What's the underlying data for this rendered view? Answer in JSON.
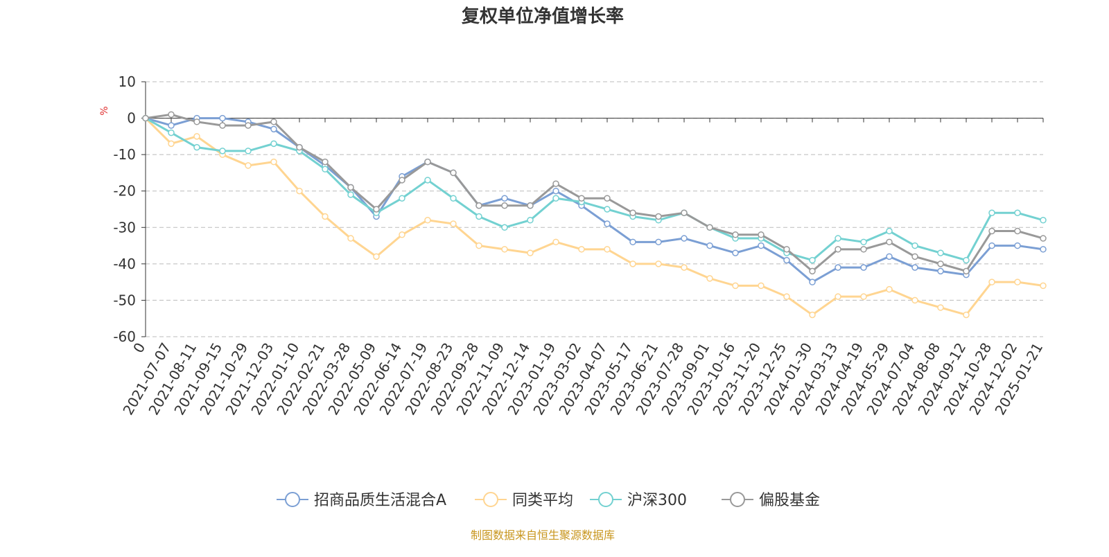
{
  "chart_data": {
    "type": "line",
    "title": "复权单位净值增长率",
    "y_label": "%",
    "categories": [
      "0",
      "2021-07-07",
      "2021-08-11",
      "2021-09-15",
      "2021-10-29",
      "2021-12-03",
      "2022-01-10",
      "2022-02-21",
      "2022-03-28",
      "2022-05-09",
      "2022-06-14",
      "2022-07-19",
      "2022-08-23",
      "2022-09-28",
      "2022-11-09",
      "2022-12-14",
      "2023-01-19",
      "2023-03-02",
      "2023-04-07",
      "2023-05-17",
      "2023-06-21",
      "2023-07-28",
      "2023-09-01",
      "2023-10-16",
      "2023-11-20",
      "2023-12-25",
      "2024-01-30",
      "2024-03-13",
      "2024-04-19",
      "2024-05-29",
      "2024-07-04",
      "2024-08-08",
      "2024-09-12",
      "2024-10-28",
      "2024-12-02",
      "2025-01-21"
    ],
    "series": [
      {
        "name": "招商品质生活混合A",
        "color": "#7b9fd4",
        "values": [
          0,
          -2,
          0,
          0,
          -1,
          -3,
          -8,
          -13,
          -19,
          -27,
          -16,
          -12,
          -15,
          -24,
          -22,
          -24,
          -20,
          -24,
          -29,
          -34,
          -34,
          -33,
          -35,
          -37,
          -35,
          -39,
          -45,
          -41,
          -41,
          -38,
          -41,
          -42,
          -43,
          -35,
          -35,
          -36
        ]
      },
      {
        "name": "同类平均",
        "color": "#ffd591",
        "values": [
          0,
          -7,
          -5,
          -10,
          -13,
          -12,
          -20,
          -27,
          -33,
          -38,
          -32,
          -28,
          -29,
          -35,
          -36,
          -37,
          -34,
          -36,
          -36,
          -40,
          -40,
          -41,
          -44,
          -46,
          -46,
          -49,
          -54,
          -49,
          -49,
          -47,
          -50,
          -52,
          -54,
          -45,
          -45,
          -46
        ]
      },
      {
        "name": "沪深300",
        "color": "#73d1d1",
        "values": [
          0,
          -4,
          -8,
          -9,
          -9,
          -7,
          -9,
          -14,
          -21,
          -26,
          -22,
          -17,
          -22,
          -27,
          -30,
          -28,
          -22,
          -23,
          -25,
          -27,
          -28,
          -26,
          -30,
          -33,
          -33,
          -37,
          -39,
          -33,
          -34,
          -31,
          -35,
          -37,
          -39,
          -26,
          -26,
          -28
        ]
      },
      {
        "name": "偏股基金",
        "color": "#999999",
        "values": [
          0,
          1,
          -1,
          -2,
          -2,
          -1,
          -8,
          -12,
          -19,
          -25,
          -17,
          -12,
          -15,
          -24,
          -24,
          -24,
          -18,
          -22,
          -22,
          -26,
          -27,
          -26,
          -30,
          -32,
          -32,
          -36,
          -42,
          -36,
          -36,
          -34,
          -38,
          -40,
          -42,
          -31,
          -31,
          -33
        ]
      }
    ],
    "ylim": [
      -60,
      10
    ],
    "yticks": [
      -60,
      -50,
      -40,
      -30,
      -20,
      -10,
      0,
      10
    ],
    "grid": true,
    "source": "制图数据来自恒生聚源数据库"
  }
}
